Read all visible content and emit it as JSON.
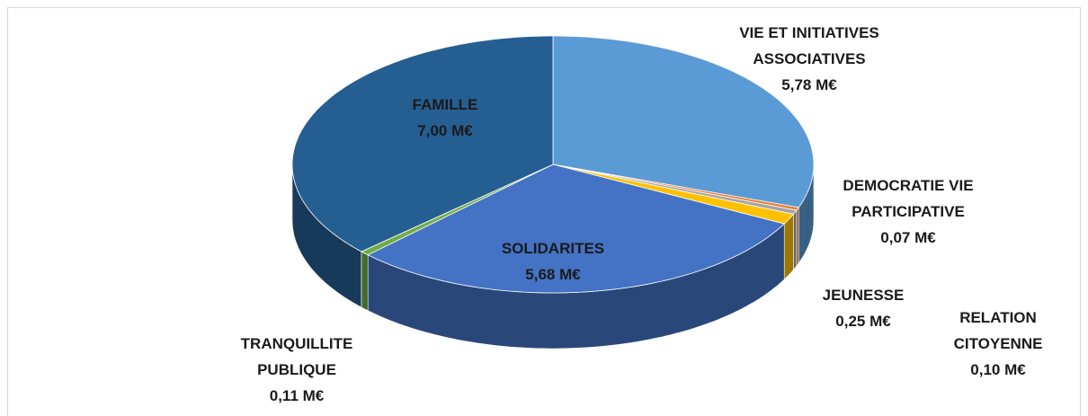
{
  "chart_data": {
    "type": "pie3d",
    "categories": [
      "VIE ET INITIATIVES ASSOCIATIVES",
      "DEMOCRATIE VIE PARTICIPATIVE",
      "RELATION CITOYENNE",
      "JEUNESSE",
      "SOLIDARITES",
      "TRANQUILLITE PUBLIQUE",
      "FAMILLE"
    ],
    "values": [
      5.78,
      0.07,
      0.1,
      0.25,
      5.68,
      0.11,
      7.0
    ],
    "value_labels": [
      "5,78 M€",
      "0,07 M€",
      "0,10 M€",
      "0,25 M€",
      "5,68 M€",
      "0,11 M€",
      "7,00 M€"
    ],
    "colors": [
      "#5b9bd5",
      "#ed7d31",
      "#a5a5a5",
      "#ffc000",
      "#4472c4",
      "#70ad47",
      "#255e91"
    ]
  }
}
